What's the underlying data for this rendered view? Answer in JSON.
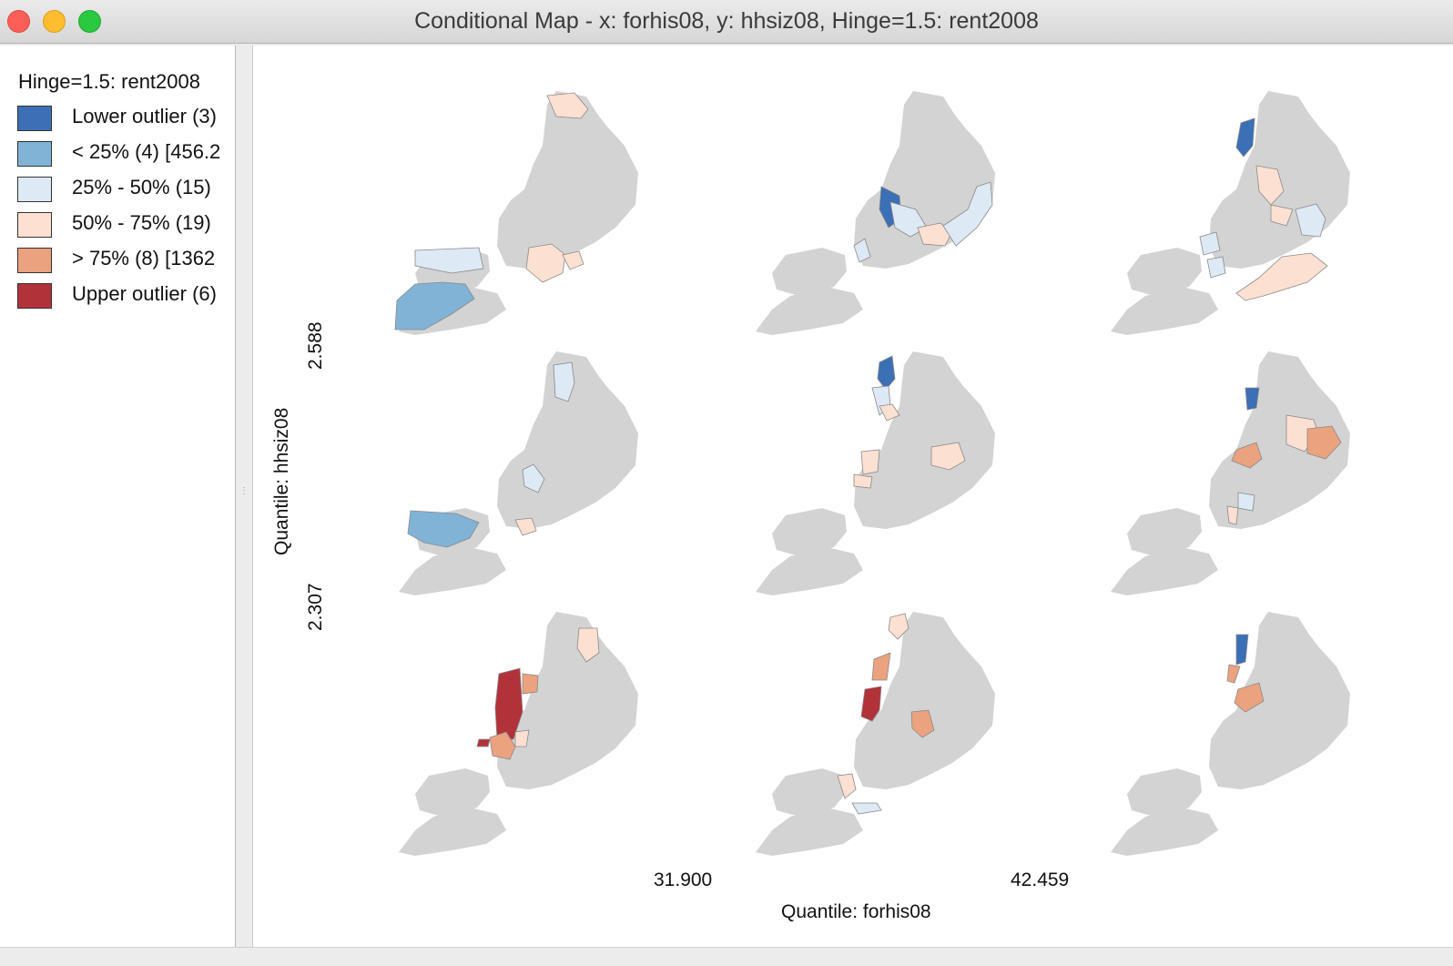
{
  "window": {
    "title": "Conditional Map - x: forhis08, y: hhsiz08, Hinge=1.5: rent2008"
  },
  "legend": {
    "title": "Hinge=1.5: rent2008",
    "items": [
      {
        "label": "Lower outlier (3)",
        "color": "#3b6fb6"
      },
      {
        "label": "< 25% (4)  [456.2",
        "color": "#80b3d6"
      },
      {
        "label": "25% - 50% (15)",
        "color": "#dde9f4"
      },
      {
        "label": "50% - 75% (19)",
        "color": "#fce0d1"
      },
      {
        "label": "> 75% (8)  [1362",
        "color": "#eaa27f"
      },
      {
        "label": "Upper outlier (6)",
        "color": "#b2323a"
      }
    ]
  },
  "axes": {
    "y_title": "Quantile: hhsiz08",
    "y_breaks": [
      "2.588",
      "2.307"
    ],
    "x_title": "Quantile: forhis08",
    "x_breaks": [
      "31.900",
      "42.459"
    ]
  },
  "base_color": "#d3d3d3",
  "map_icon": "nyc-community-districts-map"
}
